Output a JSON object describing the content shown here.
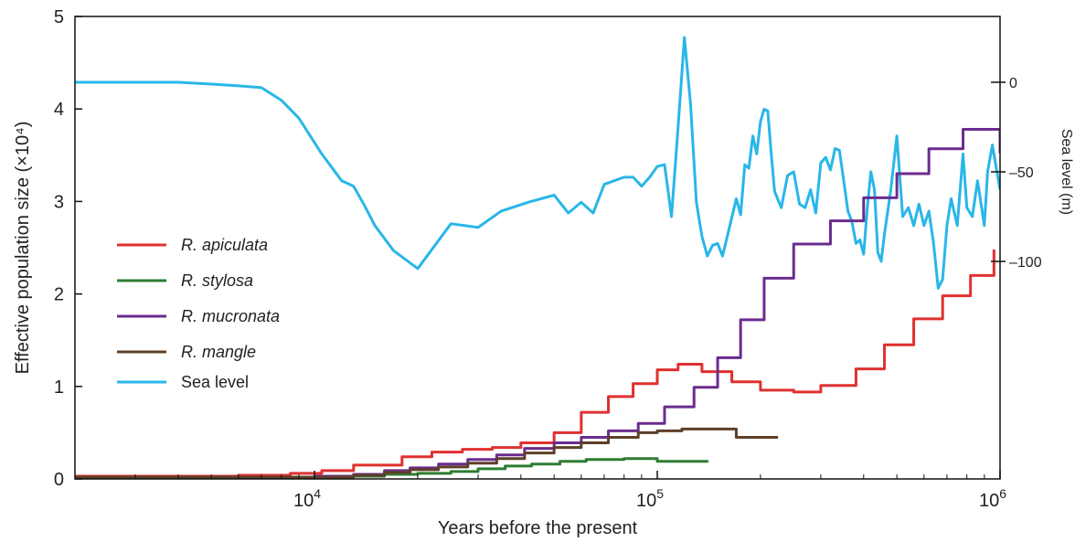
{
  "chart_data": {
    "type": "line",
    "xlabel": "Years before the present",
    "ylabel": "Effective population size (×10⁴)",
    "y2label": "Sea level (m)",
    "xscale": "log",
    "xlim": [
      2000,
      1000000
    ],
    "ylim": [
      0,
      5
    ],
    "y2lim": [
      -120,
      5
    ],
    "x_ticks": [
      {
        "value": 10000,
        "base": "10",
        "exp": "4"
      },
      {
        "value": 100000,
        "base": "10",
        "exp": "5"
      },
      {
        "value": 1000000,
        "base": "10",
        "exp": "6"
      }
    ],
    "y_ticks": [
      "0",
      "1",
      "2",
      "3",
      "4",
      "5"
    ],
    "y2_ticks": [
      "0",
      "-50",
      "-100"
    ],
    "legend_position": "left",
    "series": [
      {
        "name": "R. apiculata",
        "color": "#e03030",
        "italic": true,
        "axis": "left",
        "step": true,
        "x": [
          2000,
          6000,
          8500,
          10500,
          13000,
          18000,
          22000,
          27000,
          33000,
          40000,
          50000,
          60000,
          72000,
          85000,
          100000,
          115000,
          135000,
          165000,
          200000,
          250000,
          300000,
          380000,
          460000,
          560000,
          680000,
          820000,
          960000
        ],
        "y": [
          0.03,
          0.04,
          0.06,
          0.09,
          0.15,
          0.24,
          0.29,
          0.32,
          0.34,
          0.39,
          0.5,
          0.72,
          0.89,
          1.03,
          1.18,
          1.24,
          1.16,
          1.05,
          0.96,
          0.94,
          1.01,
          1.19,
          1.45,
          1.73,
          1.98,
          2.2,
          2.48
        ]
      },
      {
        "name": "R. stylosa",
        "color": "#2e7d32",
        "italic": true,
        "axis": "left",
        "step": true,
        "x": [
          2000,
          7000,
          10000,
          13000,
          16000,
          20000,
          25000,
          30000,
          36000,
          43000,
          52000,
          62000,
          80000,
          100000,
          140000
        ],
        "y": [
          0.02,
          0.02,
          0.03,
          0.03,
          0.05,
          0.06,
          0.08,
          0.11,
          0.14,
          0.16,
          0.19,
          0.21,
          0.22,
          0.19,
          0.18
        ]
      },
      {
        "name": "R. mucronata",
        "color": "#6a2c8f",
        "italic": true,
        "axis": "left",
        "step": true,
        "x": [
          2000,
          7000,
          10000,
          13000,
          16000,
          19000,
          23000,
          28000,
          34000,
          41000,
          50000,
          60000,
          72000,
          88000,
          105000,
          128000,
          150000,
          175000,
          205000,
          250000,
          320000,
          400000,
          500000,
          620000,
          780000,
          1000000
        ],
        "y": [
          0.02,
          0.02,
          0.03,
          0.05,
          0.09,
          0.12,
          0.16,
          0.21,
          0.26,
          0.33,
          0.39,
          0.45,
          0.52,
          0.6,
          0.78,
          0.99,
          1.31,
          1.72,
          2.17,
          2.54,
          2.79,
          3.04,
          3.3,
          3.57,
          3.78,
          3.52
        ]
      },
      {
        "name": "R. mangle",
        "color": "#5d4028",
        "italic": true,
        "axis": "left",
        "step": true,
        "x": [
          2000,
          10000,
          13000,
          16000,
          19000,
          23000,
          28000,
          34000,
          41000,
          50000,
          60000,
          72000,
          88000,
          100000,
          118000,
          170000,
          225000
        ],
        "y": [
          0.02,
          0.02,
          0.04,
          0.07,
          0.1,
          0.13,
          0.17,
          0.22,
          0.28,
          0.34,
          0.39,
          0.45,
          0.5,
          0.52,
          0.54,
          0.45,
          0.45
        ]
      },
      {
        "name": "Sea level",
        "color": "#29b6e8",
        "italic": false,
        "axis": "right",
        "step": false,
        "x": [
          2000,
          3000,
          4000,
          5000,
          6000,
          7000,
          8000,
          9000,
          10500,
          12000,
          13000,
          14000,
          15000,
          17000,
          20000,
          25000,
          30000,
          35000,
          42000,
          50000,
          55000,
          60000,
          65000,
          70000,
          80000,
          85000,
          90000,
          95000,
          100000,
          105000,
          110000,
          115000,
          120000,
          125000,
          130000,
          135000,
          140000,
          145000,
          150000,
          155000,
          160000,
          170000,
          175000,
          180000,
          185000,
          190000,
          195000,
          200000,
          205000,
          210000,
          215000,
          220000,
          230000,
          240000,
          250000,
          260000,
          270000,
          280000,
          290000,
          300000,
          310000,
          320000,
          330000,
          340000,
          350000,
          360000,
          370000,
          380000,
          390000,
          400000,
          410000,
          420000,
          430000,
          440000,
          450000,
          460000,
          480000,
          500000,
          520000,
          540000,
          560000,
          580000,
          600000,
          620000,
          640000,
          660000,
          680000,
          700000,
          720000,
          750000,
          780000,
          800000,
          830000,
          860000,
          900000,
          920000,
          950000,
          1000000
        ],
        "y": [
          0,
          0,
          0,
          -1,
          -2,
          -3,
          -10,
          -20,
          -40,
          -55,
          -58,
          -69,
          -80,
          -94,
          -104,
          -79,
          -81,
          -72,
          -67,
          -63,
          -73,
          -67,
          -73,
          -57,
          -53,
          -53,
          -58,
          -53,
          -47,
          -46,
          -75,
          -25,
          25,
          -12,
          -67,
          -86,
          -97,
          -91,
          -90,
          -97,
          -86,
          -65,
          -74,
          -46,
          -48,
          -30,
          -40,
          -22,
          -15,
          -16,
          -40,
          -61,
          -70,
          -52,
          -50,
          -68,
          -70,
          -60,
          -73,
          -45,
          -42,
          -49,
          -37,
          -38,
          -55,
          -72,
          -78,
          -90,
          -88,
          -96,
          -70,
          -50,
          -60,
          -95,
          -100,
          -85,
          -60,
          -30,
          -75,
          -70,
          -80,
          -68,
          -80,
          -72,
          -90,
          -115,
          -110,
          -80,
          -65,
          -80,
          -40,
          -70,
          -75,
          -55,
          -80,
          -50,
          -35,
          -60
        ]
      }
    ]
  }
}
